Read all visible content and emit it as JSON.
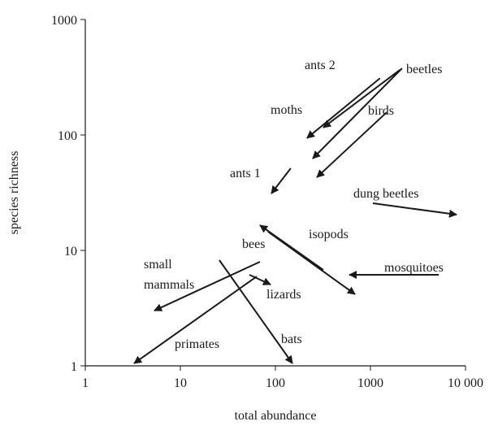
{
  "chart_data": {
    "type": "arrow",
    "xlabel": "total abundance",
    "ylabel": "species richness",
    "xscale": "log",
    "yscale": "log",
    "xlim": [
      1,
      10000
    ],
    "ylim": [
      1,
      1000
    ],
    "xticks": [
      1,
      10,
      100,
      1000,
      {
        "value": 10000,
        "label": "10 000"
      }
    ],
    "yticks": [
      1,
      10,
      100,
      1000
    ],
    "color": "#1a1a1a",
    "arrows": [
      {
        "name": "ants 2",
        "x": [
          1260,
          215
        ],
        "y": [
          310,
          94
        ]
      },
      {
        "name": "moths",
        "x": [
          2040,
          319
        ],
        "y": [
          366,
          116
        ]
      },
      {
        "name": "beetles",
        "x": [
          2150,
          247
        ],
        "y": [
          378,
          62.5
        ]
      },
      {
        "name": "birds",
        "x": [
          1480,
          273
        ],
        "y": [
          157,
          43
        ]
      },
      {
        "name": "ants 1",
        "x": [
          145,
          90.6
        ],
        "y": [
          51.4,
          31.1
        ]
      },
      {
        "name": "dung beetles",
        "x": [
          1060,
          8050
        ],
        "y": [
          25.6,
          20.4
        ]
      },
      {
        "name": "isopods",
        "x": [
          319,
          68.8
        ],
        "y": [
          6.78,
          16.5
        ]
      },
      {
        "name": "bees",
        "x": [
          83.8,
          688
        ],
        "y": [
          14.5,
          4.17
        ]
      },
      {
        "name": "mosquitoes",
        "x": [
          5220,
          600
        ],
        "y": [
          6.15,
          6.15
        ]
      },
      {
        "name": "small mammals",
        "x": [
          68.8,
          5.33
        ],
        "y": [
          7.97,
          3.01
        ]
      },
      {
        "name": "lizards",
        "x": [
          53.3,
          88.9
        ],
        "y": [
          6.15,
          5.06
        ]
      },
      {
        "name": "primates",
        "x": [
          63.6,
          3.26
        ],
        "y": [
          5.95,
          1.05
        ]
      },
      {
        "name": "bats",
        "x": [
          25.7,
          151
        ],
        "y": [
          8.23,
          1.05
        ]
      }
    ]
  }
}
